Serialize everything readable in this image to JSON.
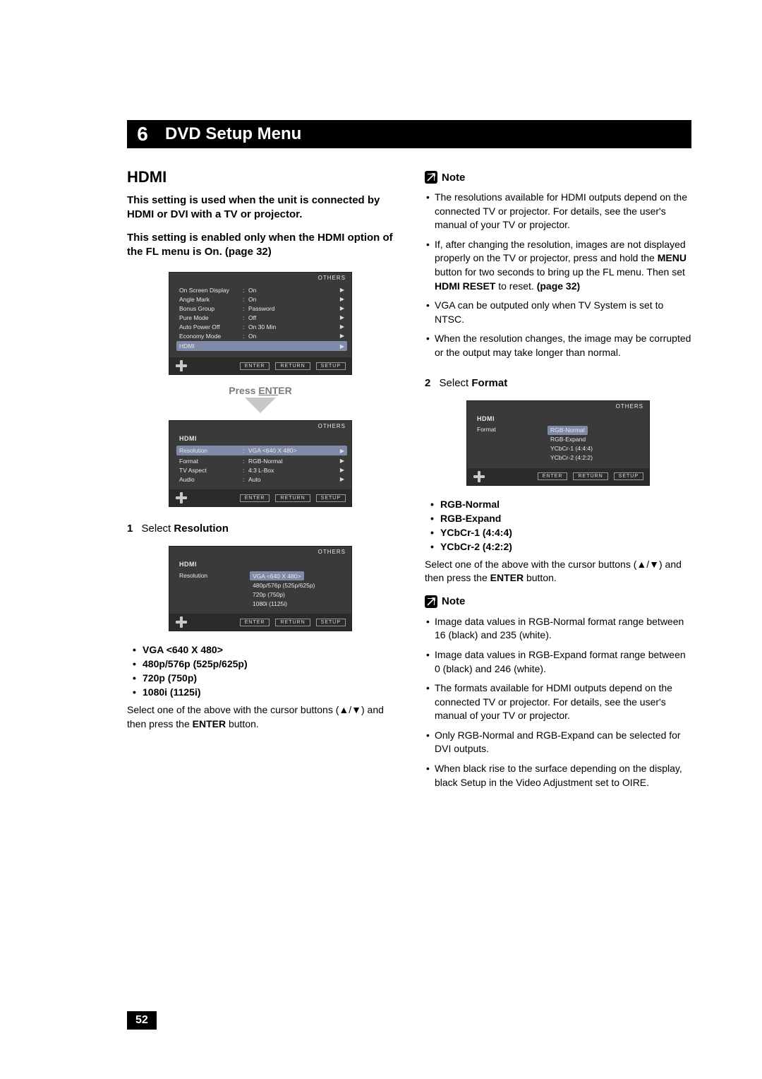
{
  "chapter": {
    "number": "6",
    "title": "DVD Setup Menu"
  },
  "page_number": "52",
  "left": {
    "section_title": "HDMI",
    "intro1": "This setting is used when the unit is connected by HDMI or DVI with a TV or projector.",
    "intro2_a": "This setting is enabled only when the HDMI option of the FL menu is On. ",
    "intro2_b": "(page 32)",
    "osd1": {
      "top": "OTHERS",
      "rows": [
        {
          "lbl": "On Screen Display",
          "val": "On"
        },
        {
          "lbl": "Angle Mark",
          "val": "On"
        },
        {
          "lbl": "Bonus Group",
          "val": "Password"
        },
        {
          "lbl": "Pure Mode",
          "val": "Off"
        },
        {
          "lbl": "Auto Power Off",
          "val": "On 30 Min"
        },
        {
          "lbl": "Economy Mode",
          "val": "On"
        }
      ],
      "selected_label": "HDMI",
      "footer": [
        "ENTER",
        "RETURN",
        "SETUP"
      ]
    },
    "press_enter_a": "Press ",
    "press_enter_b": "ENT",
    "press_enter_c": "ER",
    "osd2": {
      "top": "OTHERS",
      "hdr": "HDMI",
      "rows": [
        {
          "lbl": "Resolution",
          "val": "VGA <640 X 480>",
          "sel": true
        },
        {
          "lbl": "Format",
          "val": "RGB-Normal"
        },
        {
          "lbl": "TV Aspect",
          "val": "4:3 L-Box"
        },
        {
          "lbl": "Audio",
          "val": "Auto"
        }
      ],
      "footer": [
        "ENTER",
        "RETURN",
        "SETUP"
      ]
    },
    "step1": {
      "num": "1",
      "verb": "Select ",
      "target": "Resolution"
    },
    "osd3": {
      "top": "OTHERS",
      "hdr": "HDMI",
      "side_label": "Resolution",
      "options": [
        {
          "t": "VGA <640 X 480>",
          "sel": true
        },
        {
          "t": "480p/576p (525p/625p)"
        },
        {
          "t": "720p (750p)"
        },
        {
          "t": "1080i (1125i)"
        }
      ],
      "footer": [
        "ENTER",
        "RETURN",
        "SETUP"
      ]
    },
    "res_options": [
      "VGA <640 X 480>",
      "480p/576p (525p/625p)",
      "720p (750p)",
      "1080i (1125i)"
    ],
    "select_text_a": "Select one of the above with the cursor buttons (▲/▼) and then press the ",
    "select_text_b": "ENTER",
    "select_text_c": " button."
  },
  "right": {
    "note_label": "Note",
    "notes1": [
      "The resolutions available for HDMI outputs depend on the connected TV or projector. For details, see the user's manual of your TV or projector.",
      {
        "parts": [
          {
            "t": "If, after changing the resolution, images are not displayed properly on the TV or projector, press and hold the "
          },
          {
            "t": "MENU",
            "b": true
          },
          {
            "t": " button for two seconds to bring up the FL menu. Then set "
          },
          {
            "t": "HDMI RESET",
            "b": true
          },
          {
            "t": " to reset. "
          },
          {
            "t": "(page 32)",
            "b": true
          }
        ]
      },
      "VGA can be outputed only when TV System is set to NTSC.",
      "When the resolution changes, the image may be corrupted or the output may take longer than normal."
    ],
    "step2": {
      "num": "2",
      "verb": "Select ",
      "target": "Format"
    },
    "osd4": {
      "top": "OTHERS",
      "hdr": "HDMI",
      "side_label": "Format",
      "options": [
        {
          "t": "RGB-Normal",
          "sel": true
        },
        {
          "t": "RGB-Expand"
        },
        {
          "t": "YCbCr-1 (4:4:4)"
        },
        {
          "t": "YCbCr-2 (4:2:2)"
        }
      ],
      "footer": [
        "ENTER",
        "RETURN",
        "SETUP"
      ]
    },
    "fmt_options": [
      "RGB-Normal",
      "RGB-Expand",
      "YCbCr-1 (4:4:4)",
      "YCbCr-2 (4:2:2)"
    ],
    "select_text_a": "Select one of the above with the cursor buttons (▲/▼) and then press the ",
    "select_text_b": "ENTER",
    "select_text_c": " button.",
    "notes2": [
      "Image data values in RGB-Normal format range between 16 (black) and 235 (white).",
      "Image data values in RGB-Expand format range between 0 (black) and 246 (white).",
      "The formats available for HDMI outputs depend on the connected TV or projector. For details, see the user's manual of your TV or projector.",
      "Only RGB-Normal and RGB-Expand can be selected for DVI outputs.",
      "When black rise to the surface depending on the display, black Setup in the Video Adjustment set to OIRE."
    ]
  }
}
